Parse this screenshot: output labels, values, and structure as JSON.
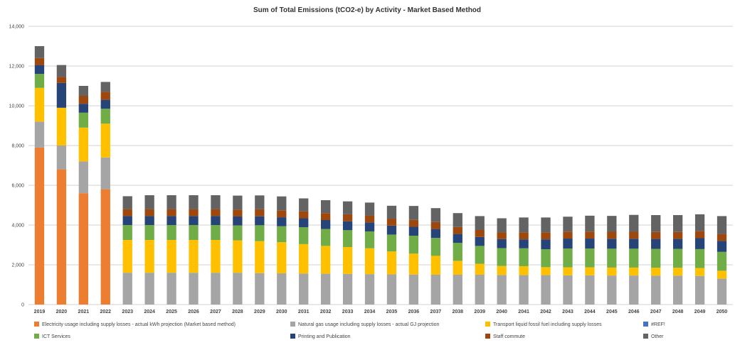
{
  "chart_data": {
    "type": "bar",
    "stacked": true,
    "title": "Sum of Total Emissions (tCO2-e) by Activity - Market Based Method",
    "xlabel": "",
    "ylabel": "",
    "ylim": [
      0,
      14000
    ],
    "yticks": [
      0,
      2000,
      4000,
      6000,
      8000,
      10000,
      12000,
      14000
    ],
    "ytick_labels": [
      "0",
      "2,000",
      "4,000",
      "6,000",
      "8,000",
      "10,000",
      "12,000",
      "14,000"
    ],
    "grid": true,
    "legend_position": "bottom",
    "categories": [
      "2019",
      "2020",
      "2021",
      "2022",
      "2023",
      "2024",
      "2025",
      "2026",
      "2027",
      "2028",
      "2029",
      "2030",
      "2031",
      "2032",
      "2033",
      "2034",
      "2035",
      "2036",
      "2037",
      "2038",
      "2039",
      "2040",
      "2041",
      "2042",
      "2043",
      "2044",
      "2045",
      "2046",
      "2047",
      "2048",
      "2049",
      "2050"
    ],
    "series": [
      {
        "name": "Electricity usage including supply losses - actual kWh projection (Market based method)",
        "color": "#ED7D31",
        "values": [
          7900,
          6800,
          5600,
          5800,
          0,
          0,
          0,
          0,
          0,
          0,
          0,
          0,
          0,
          0,
          0,
          0,
          0,
          0,
          0,
          0,
          0,
          0,
          0,
          0,
          0,
          0,
          0,
          0,
          0,
          0,
          0,
          0
        ]
      },
      {
        "name": "Natural gas usage including supply losses - actual GJ projection",
        "color": "#A5A5A5",
        "values": [
          1300,
          1200,
          1600,
          1600,
          1600,
          1600,
          1600,
          1600,
          1600,
          1600,
          1580,
          1570,
          1560,
          1550,
          1540,
          1530,
          1520,
          1510,
          1500,
          1500,
          1500,
          1490,
          1480,
          1480,
          1470,
          1470,
          1460,
          1460,
          1450,
          1450,
          1440,
          1300
        ]
      },
      {
        "name": "Transport liquid fossil fuel including supply losses",
        "color": "#FFC000",
        "values": [
          1700,
          1900,
          1700,
          1700,
          1650,
          1650,
          1650,
          1650,
          1650,
          1630,
          1610,
          1570,
          1480,
          1400,
          1350,
          1300,
          1150,
          1050,
          950,
          700,
          550,
          450,
          450,
          400,
          400,
          400,
          400,
          400,
          400,
          400,
          400,
          400
        ]
      },
      {
        "name": "#REF!",
        "color": "#4472C4",
        "values": [
          0,
          0,
          0,
          0,
          0,
          0,
          0,
          0,
          0,
          0,
          0,
          0,
          0,
          0,
          0,
          0,
          0,
          0,
          0,
          0,
          0,
          0,
          0,
          0,
          0,
          0,
          0,
          0,
          0,
          0,
          0,
          0
        ]
      },
      {
        "name": "ICT Services",
        "color": "#70AD47",
        "values": [
          700,
          0,
          750,
          750,
          750,
          750,
          750,
          750,
          750,
          750,
          800,
          800,
          850,
          850,
          850,
          850,
          850,
          900,
          900,
          900,
          900,
          900,
          900,
          900,
          950,
          950,
          950,
          950,
          950,
          950,
          950,
          950
        ]
      },
      {
        "name": "Printing and Publication",
        "color": "#264478",
        "values": [
          450,
          1250,
          450,
          450,
          450,
          450,
          450,
          450,
          450,
          450,
          450,
          450,
          450,
          450,
          450,
          450,
          450,
          450,
          450,
          450,
          450,
          450,
          450,
          500,
          500,
          500,
          500,
          500,
          500,
          500,
          550,
          550
        ]
      },
      {
        "name": "Staff commute",
        "color": "#9E480E",
        "values": [
          350,
          300,
          400,
          400,
          350,
          350,
          350,
          350,
          350,
          350,
          350,
          350,
          350,
          350,
          350,
          350,
          350,
          350,
          350,
          350,
          350,
          350,
          350,
          350,
          350,
          350,
          350,
          350,
          350,
          350,
          350,
          350
        ]
      },
      {
        "name": "Other",
        "color": "#636363",
        "values": [
          600,
          600,
          500,
          500,
          650,
          700,
          700,
          700,
          700,
          700,
          700,
          700,
          650,
          650,
          650,
          650,
          650,
          700,
          700,
          700,
          700,
          700,
          750,
          750,
          750,
          800,
          800,
          850,
          850,
          850,
          850,
          900
        ]
      }
    ]
  }
}
